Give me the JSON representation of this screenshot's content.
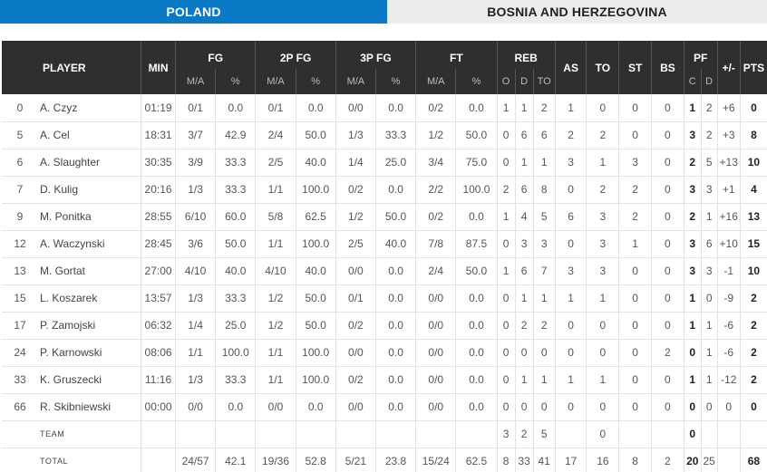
{
  "tabs": [
    {
      "label": "POLAND",
      "active": true
    },
    {
      "label": "BOSNIA AND HERZEGOVINA",
      "active": false
    }
  ],
  "headers": {
    "player": "PLAYER",
    "min": "MIN",
    "fg": "FG",
    "fg2": "2P FG",
    "fg3": "3P FG",
    "ft": "FT",
    "reb": "REB",
    "as": "AS",
    "to": "TO",
    "st": "ST",
    "bs": "BS",
    "pf": "PF",
    "pm": "+/-",
    "pts": "PTS",
    "ma": "M/A",
    "pct": "%",
    "reb_o": "O",
    "reb_d": "D",
    "reb_to": "TO",
    "pf_c": "C",
    "pf_d": "D"
  },
  "players": [
    {
      "num": "0",
      "name": "A. Czyz",
      "min": "01:19",
      "fg": "0/1",
      "fgp": "0.0",
      "fg2": "0/1",
      "fg2p": "0.0",
      "fg3": "0/0",
      "fg3p": "0.0",
      "ft": "0/2",
      "ftp": "0.0",
      "o": "1",
      "d": "1",
      "tr": "2",
      "as": "1",
      "to": "0",
      "st": "0",
      "bs": "0",
      "pfc": "1",
      "pfd": "2",
      "pm": "+6",
      "pts": "0"
    },
    {
      "num": "5",
      "name": "A. Cel",
      "min": "18:31",
      "fg": "3/7",
      "fgp": "42.9",
      "fg2": "2/4",
      "fg2p": "50.0",
      "fg3": "1/3",
      "fg3p": "33.3",
      "ft": "1/2",
      "ftp": "50.0",
      "o": "0",
      "d": "6",
      "tr": "6",
      "as": "2",
      "to": "2",
      "st": "0",
      "bs": "0",
      "pfc": "3",
      "pfd": "2",
      "pm": "+3",
      "pts": "8"
    },
    {
      "num": "6",
      "name": "A. Slaughter",
      "min": "30:35",
      "fg": "3/9",
      "fgp": "33.3",
      "fg2": "2/5",
      "fg2p": "40.0",
      "fg3": "1/4",
      "fg3p": "25.0",
      "ft": "3/4",
      "ftp": "75.0",
      "o": "0",
      "d": "1",
      "tr": "1",
      "as": "3",
      "to": "1",
      "st": "3",
      "bs": "0",
      "pfc": "2",
      "pfd": "5",
      "pm": "+13",
      "pts": "10"
    },
    {
      "num": "7",
      "name": "D. Kulig",
      "min": "20:16",
      "fg": "1/3",
      "fgp": "33.3",
      "fg2": "1/1",
      "fg2p": "100.0",
      "fg3": "0/2",
      "fg3p": "0.0",
      "ft": "2/2",
      "ftp": "100.0",
      "o": "2",
      "d": "6",
      "tr": "8",
      "as": "0",
      "to": "2",
      "st": "2",
      "bs": "0",
      "pfc": "3",
      "pfd": "3",
      "pm": "+1",
      "pts": "4"
    },
    {
      "num": "9",
      "name": "M. Ponitka",
      "min": "28:55",
      "fg": "6/10",
      "fgp": "60.0",
      "fg2": "5/8",
      "fg2p": "62.5",
      "fg3": "1/2",
      "fg3p": "50.0",
      "ft": "0/2",
      "ftp": "0.0",
      "o": "1",
      "d": "4",
      "tr": "5",
      "as": "6",
      "to": "3",
      "st": "2",
      "bs": "0",
      "pfc": "2",
      "pfd": "1",
      "pm": "+16",
      "pts": "13"
    },
    {
      "num": "12",
      "name": "A. Waczynski",
      "min": "28:45",
      "fg": "3/6",
      "fgp": "50.0",
      "fg2": "1/1",
      "fg2p": "100.0",
      "fg3": "2/5",
      "fg3p": "40.0",
      "ft": "7/8",
      "ftp": "87.5",
      "o": "0",
      "d": "3",
      "tr": "3",
      "as": "0",
      "to": "3",
      "st": "1",
      "bs": "0",
      "pfc": "3",
      "pfd": "6",
      "pm": "+10",
      "pts": "15"
    },
    {
      "num": "13",
      "name": "M. Gortat",
      "min": "27:00",
      "fg": "4/10",
      "fgp": "40.0",
      "fg2": "4/10",
      "fg2p": "40.0",
      "fg3": "0/0",
      "fg3p": "0.0",
      "ft": "2/4",
      "ftp": "50.0",
      "o": "1",
      "d": "6",
      "tr": "7",
      "as": "3",
      "to": "3",
      "st": "0",
      "bs": "0",
      "pfc": "3",
      "pfd": "3",
      "pm": "-1",
      "pts": "10"
    },
    {
      "num": "15",
      "name": "L. Koszarek",
      "min": "13:57",
      "fg": "1/3",
      "fgp": "33.3",
      "fg2": "1/2",
      "fg2p": "50.0",
      "fg3": "0/1",
      "fg3p": "0.0",
      "ft": "0/0",
      "ftp": "0.0",
      "o": "0",
      "d": "1",
      "tr": "1",
      "as": "1",
      "to": "1",
      "st": "0",
      "bs": "0",
      "pfc": "1",
      "pfd": "0",
      "pm": "-9",
      "pts": "2"
    },
    {
      "num": "17",
      "name": "P. Zamojski",
      "min": "06:32",
      "fg": "1/4",
      "fgp": "25.0",
      "fg2": "1/2",
      "fg2p": "50.0",
      "fg3": "0/2",
      "fg3p": "0.0",
      "ft": "0/0",
      "ftp": "0.0",
      "o": "0",
      "d": "2",
      "tr": "2",
      "as": "0",
      "to": "0",
      "st": "0",
      "bs": "0",
      "pfc": "1",
      "pfd": "1",
      "pm": "-6",
      "pts": "2"
    },
    {
      "num": "24",
      "name": "P. Karnowski",
      "min": "08:06",
      "fg": "1/1",
      "fgp": "100.0",
      "fg2": "1/1",
      "fg2p": "100.0",
      "fg3": "0/0",
      "fg3p": "0.0",
      "ft": "0/0",
      "ftp": "0.0",
      "o": "0",
      "d": "0",
      "tr": "0",
      "as": "0",
      "to": "0",
      "st": "0",
      "bs": "2",
      "pfc": "0",
      "pfd": "1",
      "pm": "-6",
      "pts": "2"
    },
    {
      "num": "33",
      "name": "K. Gruszecki",
      "min": "11:16",
      "fg": "1/3",
      "fgp": "33.3",
      "fg2": "1/1",
      "fg2p": "100.0",
      "fg3": "0/2",
      "fg3p": "0.0",
      "ft": "0/0",
      "ftp": "0.0",
      "o": "0",
      "d": "1",
      "tr": "1",
      "as": "1",
      "to": "1",
      "st": "0",
      "bs": "0",
      "pfc": "1",
      "pfd": "1",
      "pm": "-12",
      "pts": "2"
    },
    {
      "num": "66",
      "name": "R. Skibniewski",
      "min": "00:00",
      "fg": "0/0",
      "fgp": "0.0",
      "fg2": "0/0",
      "fg2p": "0.0",
      "fg3": "0/0",
      "fg3p": "0.0",
      "ft": "0/0",
      "ftp": "0.0",
      "o": "0",
      "d": "0",
      "tr": "0",
      "as": "0",
      "to": "0",
      "st": "0",
      "bs": "0",
      "pfc": "0",
      "pfd": "0",
      "pm": "0",
      "pts": "0"
    }
  ],
  "team": {
    "label": "TEAM",
    "o": "3",
    "d": "2",
    "tr": "5",
    "to": "0",
    "pfc": "0"
  },
  "total": {
    "label": "TOTAL",
    "fg": "24/57",
    "fgp": "42.1",
    "fg2": "19/36",
    "fg2p": "52.8",
    "fg3": "5/21",
    "fg3p": "23.8",
    "ft": "15/24",
    "ftp": "62.5",
    "o": "8",
    "d": "33",
    "tr": "41",
    "as": "17",
    "to": "16",
    "st": "8",
    "bs": "2",
    "pfc": "20",
    "pfd": "25",
    "pts": "68"
  }
}
